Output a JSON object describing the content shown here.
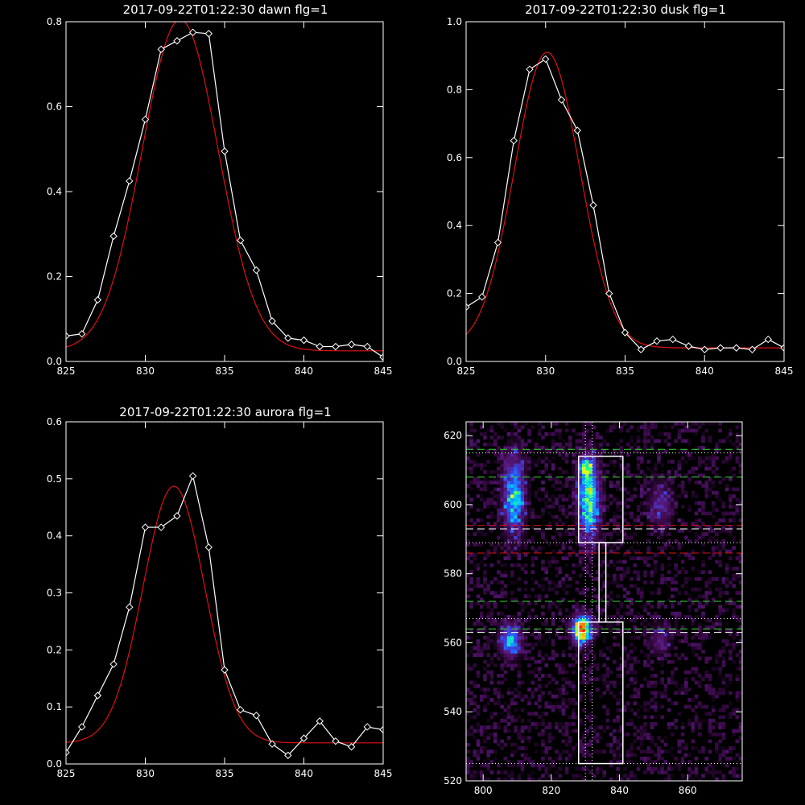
{
  "chart_data": [
    {
      "type": "line",
      "title": "2017-09-22T01:22:30 dawn flg=1",
      "xlim": [
        825,
        845
      ],
      "ylim": [
        0,
        0.8
      ],
      "xticks": [
        825,
        830,
        835,
        840,
        845
      ],
      "yticks": [
        0.0,
        0.2,
        0.4,
        0.6,
        0.8
      ],
      "ytick_labels": [
        "0.0",
        "0.2",
        "0.4",
        "0.6",
        "0.8"
      ],
      "series": [
        {
          "x": [
            825,
            826,
            827,
            828,
            829,
            830,
            831,
            832,
            833,
            834,
            835,
            836,
            837,
            838,
            839,
            840,
            841,
            842,
            843,
            844,
            845
          ],
          "values": [
            0.06,
            0.065,
            0.145,
            0.295,
            0.425,
            0.57,
            0.735,
            0.755,
            0.775,
            0.772,
            0.495,
            0.285,
            0.215,
            0.095,
            0.055,
            0.05,
            0.035,
            0.035,
            0.04,
            0.035,
            0.01
          ],
          "color": "#ffffff",
          "marker": "diamond"
        },
        {
          "kind": "gaussian_fit",
          "color": "#e01010",
          "amplitude": 0.78,
          "center": 832.2,
          "sigma": 2.4,
          "offset": 0.025
        }
      ]
    },
    {
      "type": "line",
      "title": "2017-09-22T01:22:30 dusk flg=1",
      "xlim": [
        825,
        845
      ],
      "ylim": [
        0,
        1.0
      ],
      "xticks": [
        825,
        830,
        835,
        840,
        845
      ],
      "yticks": [
        0.0,
        0.2,
        0.4,
        0.6,
        0.8,
        1.0
      ],
      "ytick_labels": [
        "0.0",
        "0.2",
        "0.4",
        "0.6",
        "0.8",
        "1.0"
      ],
      "series": [
        {
          "x": [
            825,
            826,
            827,
            828,
            829,
            830,
            831,
            832,
            833,
            834,
            835,
            836,
            837,
            838,
            839,
            840,
            841,
            842,
            843,
            844,
            845
          ],
          "values": [
            0.16,
            0.19,
            0.35,
            0.65,
            0.86,
            0.89,
            0.77,
            0.68,
            0.46,
            0.2,
            0.085,
            0.035,
            0.06,
            0.065,
            0.045,
            0.035,
            0.04,
            0.04,
            0.035,
            0.065,
            0.04
          ],
          "color": "#ffffff",
          "marker": "diamond"
        },
        {
          "kind": "gaussian_fit",
          "color": "#e01010",
          "amplitude": 0.87,
          "center": 830.1,
          "sigma": 2.05,
          "offset": 0.04
        }
      ]
    },
    {
      "type": "line",
      "title": "2017-09-22T01:22:30 aurora flg=1",
      "xlim": [
        825,
        845
      ],
      "ylim": [
        0,
        0.6
      ],
      "xticks": [
        825,
        830,
        835,
        840,
        845
      ],
      "yticks": [
        0.0,
        0.1,
        0.2,
        0.3,
        0.4,
        0.5,
        0.6
      ],
      "ytick_labels": [
        "0.0",
        "0.1",
        "0.2",
        "0.3",
        "0.4",
        "0.5",
        "0.6"
      ],
      "series": [
        {
          "x": [
            825,
            826,
            827,
            828,
            829,
            830,
            831,
            832,
            833,
            834,
            835,
            836,
            837,
            838,
            839,
            840,
            841,
            842,
            843,
            844,
            845
          ],
          "values": [
            0.02,
            0.065,
            0.12,
            0.175,
            0.275,
            0.415,
            0.415,
            0.435,
            0.505,
            0.38,
            0.165,
            0.095,
            0.085,
            0.035,
            0.015,
            0.045,
            0.075,
            0.04,
            0.03,
            0.065,
            0.06
          ],
          "color": "#ffffff",
          "marker": "diamond"
        },
        {
          "kind": "gaussian_fit",
          "color": "#e01010",
          "amplitude": 0.45,
          "center": 831.8,
          "sigma": 1.95,
          "offset": 0.037
        }
      ]
    },
    {
      "type": "heatmap",
      "xlim": [
        795,
        876
      ],
      "ylim": [
        520,
        624
      ],
      "xticks": [
        800,
        820,
        840,
        860
      ],
      "yticks": [
        520,
        540,
        560,
        580,
        600,
        620
      ],
      "colormap": [
        "#000000",
        "#3a0a48",
        "#5a1a80",
        "#3050ff",
        "#00c8ff",
        "#30ff80",
        "#ffff00",
        "#ff2000"
      ],
      "blobs": [
        {
          "x": 809,
          "y": 603,
          "sx": 2.2,
          "sy": 8,
          "amp": 0.55
        },
        {
          "x": 831,
          "y": 602,
          "sx": 2.2,
          "sy": 8,
          "amp": 0.7
        },
        {
          "x": 830,
          "y": 611,
          "sx": 1.5,
          "sy": 1.8,
          "amp": 0.45
        },
        {
          "x": 829,
          "y": 564,
          "sx": 2.0,
          "sy": 2.8,
          "amp": 1.0
        },
        {
          "x": 808,
          "y": 561,
          "sx": 2.2,
          "sy": 3.2,
          "amp": 0.55
        },
        {
          "x": 852,
          "y": 600,
          "sx": 2.5,
          "sy": 5,
          "amp": 0.25
        },
        {
          "x": 852,
          "y": 561,
          "sx": 2.0,
          "sy": 3,
          "amp": 0.25
        }
      ],
      "boxes": [
        {
          "x0": 828,
          "x1": 841,
          "y0": 589,
          "y1": 614,
          "color": "#ffffff"
        },
        {
          "x0": 828,
          "x1": 841,
          "y0": 525,
          "y1": 566,
          "color": "#ffffff"
        }
      ],
      "connector": {
        "x0": 834,
        "x1": 836,
        "y0": 566,
        "y1": 589,
        "color": "#ffffff"
      },
      "hlines": [
        {
          "y": 615,
          "color": "#ffffff",
          "style": "dotted"
        },
        {
          "y": 616,
          "color": "#30e030",
          "style": "dashed"
        },
        {
          "y": 608,
          "color": "#30e030",
          "style": "dashed"
        },
        {
          "y": 594,
          "color": "#e01010",
          "style": "dashed"
        },
        {
          "y": 593,
          "color": "#ffffff",
          "style": "dashed"
        },
        {
          "y": 589,
          "color": "#ffffff",
          "style": "dotted"
        },
        {
          "y": 586,
          "color": "#e01010",
          "style": "dashed"
        },
        {
          "y": 572,
          "color": "#30e030",
          "style": "dashed"
        },
        {
          "y": 567,
          "color": "#ffffff",
          "style": "dotted"
        },
        {
          "y": 564,
          "color": "#30e030",
          "style": "dashed"
        },
        {
          "y": 563,
          "color": "#ffffff",
          "style": "dashed"
        },
        {
          "y": 525,
          "color": "#ffffff",
          "style": "dotted"
        }
      ],
      "vlines": [
        {
          "x": 830,
          "color": "#ffffff",
          "style": "dotted"
        },
        {
          "x": 832,
          "color": "#ffffff",
          "style": "dotted"
        }
      ]
    }
  ]
}
